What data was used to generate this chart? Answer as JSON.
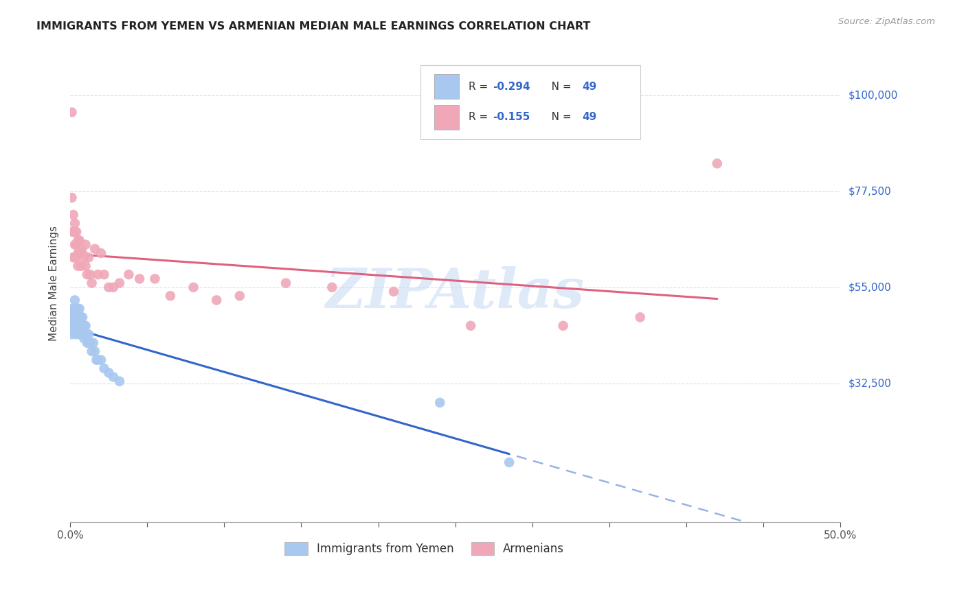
{
  "title": "IMMIGRANTS FROM YEMEN VS ARMENIAN MEDIAN MALE EARNINGS CORRELATION CHART",
  "source": "Source: ZipAtlas.com",
  "ylabel": "Median Male Earnings",
  "y_tick_labels": [
    "",
    "$32,500",
    "$55,000",
    "$77,500",
    "$100,000"
  ],
  "x_range": [
    0.0,
    0.5
  ],
  "y_range": [
    0,
    112000
  ],
  "watermark": "ZIPAtlas",
  "legend_label1": "Immigrants from Yemen",
  "legend_label2": "Armenians",
  "color_yemen": "#a8c8f0",
  "color_armenian": "#f0a8b8",
  "color_yemen_line": "#3366cc",
  "color_armenian_line": "#e06080",
  "yemen_x": [
    0.0005,
    0.001,
    0.001,
    0.001,
    0.0015,
    0.0015,
    0.002,
    0.002,
    0.002,
    0.0025,
    0.0025,
    0.003,
    0.003,
    0.003,
    0.0035,
    0.004,
    0.004,
    0.004,
    0.004,
    0.005,
    0.005,
    0.005,
    0.006,
    0.006,
    0.006,
    0.007,
    0.007,
    0.008,
    0.008,
    0.009,
    0.009,
    0.01,
    0.01,
    0.011,
    0.012,
    0.012,
    0.013,
    0.014,
    0.015,
    0.016,
    0.017,
    0.018,
    0.02,
    0.022,
    0.025,
    0.028,
    0.032,
    0.24,
    0.285
  ],
  "yemen_y": [
    46000,
    48000,
    46000,
    44000,
    50000,
    48000,
    48000,
    46000,
    45000,
    50000,
    47000,
    52000,
    50000,
    48000,
    46000,
    50000,
    48000,
    46000,
    44000,
    50000,
    47000,
    45000,
    50000,
    48000,
    44000,
    48000,
    44000,
    48000,
    45000,
    46000,
    43000,
    46000,
    44000,
    42000,
    44000,
    42000,
    42000,
    40000,
    42000,
    40000,
    38000,
    38000,
    38000,
    36000,
    35000,
    34000,
    33000,
    28000,
    14000
  ],
  "armenian_x": [
    0.001,
    0.001,
    0.0015,
    0.002,
    0.002,
    0.002,
    0.003,
    0.003,
    0.003,
    0.003,
    0.004,
    0.004,
    0.004,
    0.005,
    0.005,
    0.005,
    0.006,
    0.006,
    0.007,
    0.007,
    0.008,
    0.009,
    0.01,
    0.01,
    0.011,
    0.012,
    0.013,
    0.014,
    0.016,
    0.018,
    0.02,
    0.022,
    0.025,
    0.028,
    0.032,
    0.038,
    0.045,
    0.055,
    0.065,
    0.08,
    0.095,
    0.11,
    0.14,
    0.17,
    0.21,
    0.26,
    0.32,
    0.37,
    0.42
  ],
  "armenian_y": [
    96000,
    76000,
    68000,
    72000,
    68000,
    62000,
    70000,
    68000,
    65000,
    62000,
    68000,
    65000,
    62000,
    66000,
    63000,
    60000,
    66000,
    63000,
    64000,
    60000,
    63000,
    62000,
    65000,
    60000,
    58000,
    62000,
    58000,
    56000,
    64000,
    58000,
    63000,
    58000,
    55000,
    55000,
    56000,
    58000,
    57000,
    57000,
    53000,
    55000,
    52000,
    53000,
    56000,
    55000,
    54000,
    46000,
    46000,
    48000,
    84000
  ]
}
